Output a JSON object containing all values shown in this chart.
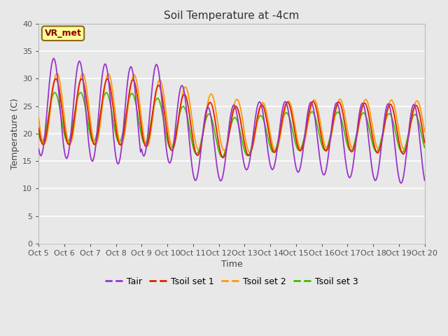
{
  "title": "Soil Temperature at -4cm",
  "xlabel": "Time",
  "ylabel": "Temperature (C)",
  "ylim": [
    0,
    40
  ],
  "annotation_text": "VR_met",
  "annotation_dark_color": "#8B0000",
  "annotation_bg": "#FFFF99",
  "annotation_border": "#8B6914",
  "plot_bg_color": "#E8E8E8",
  "fig_bg_color": "#E8E8E8",
  "grid_color": "#FFFFFF",
  "tair_color": "#9933CC",
  "tsoil1_color": "#DD2200",
  "tsoil2_color": "#FF9900",
  "tsoil3_color": "#44BB00",
  "xtick_labels": [
    "Oct 5",
    "Oct 6",
    "Oct 7",
    "Oct 8",
    "Oct 9",
    "Oct 10",
    "Oct 11",
    "Oct 12",
    "Oct 13",
    "Oct 14",
    "Oct 15",
    "Oct 16",
    "Oct 17",
    "Oct 18",
    "Oct 19",
    "Oct 20"
  ],
  "yticks": [
    0,
    5,
    10,
    15,
    20,
    25,
    30,
    35,
    40
  ]
}
